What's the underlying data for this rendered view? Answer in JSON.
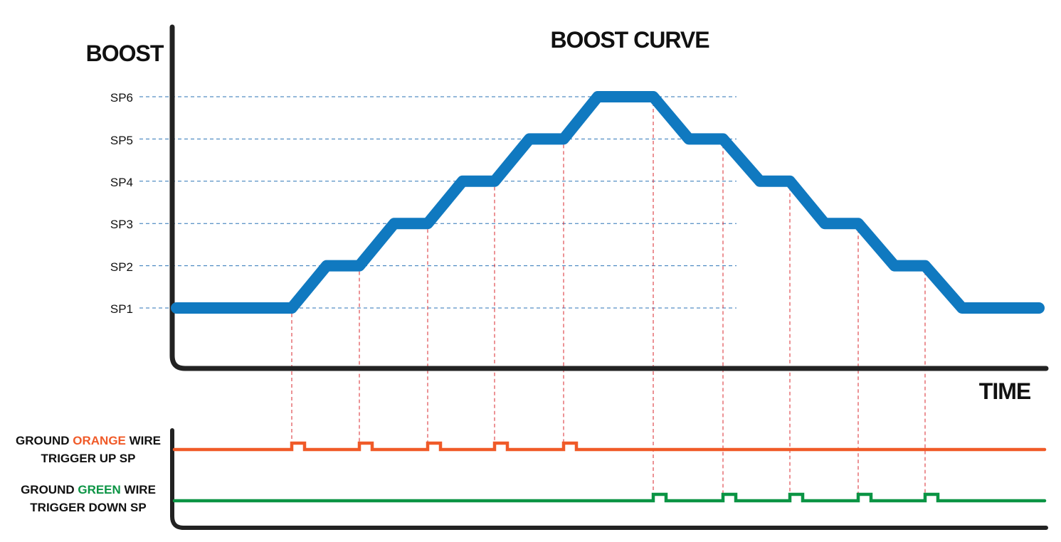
{
  "title": "BOOST CURVE",
  "y_axis_label": "BOOST",
  "x_axis_label": "TIME",
  "setpoints": [
    "SP1",
    "SP2",
    "SP3",
    "SP4",
    "SP5",
    "SP6"
  ],
  "colors": {
    "boost_curve": "#1079c0",
    "orange_wire": "#f05a28",
    "green_wire": "#0b9444",
    "guide_blue": "#2b73b6",
    "guide_red": "#d9252b",
    "axis": "#222222"
  },
  "boost_curve": {
    "levels": [
      1,
      1,
      2,
      2,
      3,
      3,
      4,
      4,
      5,
      5,
      6,
      6,
      5,
      5,
      4,
      4,
      3,
      3,
      2,
      2,
      1,
      1
    ],
    "note": "level in setpoint units (1=SP1 … 6=SP6) at successive curve vertices"
  },
  "orange_wire": {
    "label_line1_prefix": "GROUND ",
    "label_color_word": "ORANGE",
    "label_line1_suffix": " WIRE",
    "label_line2": "TRIGGER UP SP",
    "pulse_count": 5
  },
  "green_wire": {
    "label_line1_prefix": "GROUND ",
    "label_color_word": "GREEN",
    "label_line1_suffix": " WIRE",
    "label_line2": "TRIGGER DOWN SP",
    "pulse_count": 5
  }
}
